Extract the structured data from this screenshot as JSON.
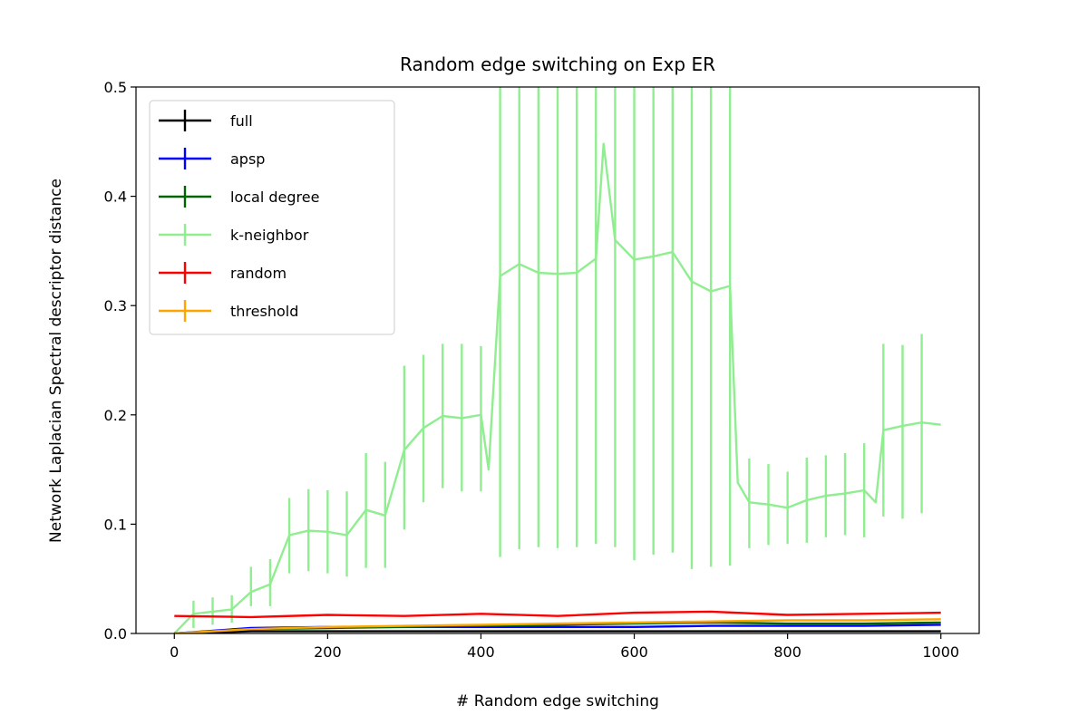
{
  "chart_data": {
    "type": "line",
    "title": "Random edge switching on Exp ER",
    "xlabel": "# Random edge switching",
    "ylabel": "Network Laplacian Spectral descriptor distance",
    "xlim": [
      -50,
      1050
    ],
    "ylim": [
      0,
      0.5
    ],
    "x_ticks": [
      0,
      200,
      400,
      600,
      800,
      1000
    ],
    "y_ticks": [
      0.0,
      0.1,
      0.2,
      0.3,
      0.4,
      0.5
    ],
    "x_tick_labels": [
      "0",
      "200",
      "400",
      "600",
      "800",
      "1000"
    ],
    "y_tick_labels": [
      "0.0",
      "0.1",
      "0.2",
      "0.3",
      "0.4",
      "0.5"
    ],
    "grid": false,
    "legend_position": "top-left",
    "series": [
      {
        "name": "full",
        "color": "#000000",
        "x": [
          0,
          100,
          200,
          300,
          400,
          500,
          600,
          700,
          800,
          900,
          1000
        ],
        "y": [
          0.0,
          0.002,
          0.002,
          0.002,
          0.002,
          0.002,
          0.002,
          0.002,
          0.002,
          0.002,
          0.002
        ]
      },
      {
        "name": "apsp",
        "color": "#0000ff",
        "x": [
          0,
          100,
          200,
          300,
          400,
          500,
          600,
          700,
          800,
          900,
          1000
        ],
        "y": [
          0.0,
          0.005,
          0.006,
          0.006,
          0.006,
          0.006,
          0.006,
          0.007,
          0.007,
          0.007,
          0.008
        ]
      },
      {
        "name": "local degree",
        "color": "#006400",
        "x": [
          0,
          100,
          200,
          300,
          400,
          500,
          600,
          700,
          800,
          900,
          1000
        ],
        "y": [
          0.0,
          0.004,
          0.005,
          0.006,
          0.007,
          0.008,
          0.009,
          0.01,
          0.009,
          0.009,
          0.01
        ]
      },
      {
        "name": "k-neighbor",
        "color": "#90ee90",
        "x": [
          0,
          25,
          50,
          75,
          100,
          125,
          150,
          175,
          200,
          225,
          250,
          275,
          300,
          325,
          350,
          375,
          400,
          410,
          425,
          450,
          475,
          500,
          525,
          550,
          560,
          575,
          600,
          625,
          650,
          675,
          700,
          725,
          735,
          750,
          775,
          800,
          825,
          850,
          875,
          900,
          915,
          925,
          950,
          975,
          1000
        ],
        "y": [
          0.0,
          0.018,
          0.02,
          0.022,
          0.038,
          0.045,
          0.09,
          0.094,
          0.093,
          0.09,
          0.113,
          0.108,
          0.168,
          0.188,
          0.199,
          0.197,
          0.2,
          0.15,
          0.327,
          0.338,
          0.33,
          0.329,
          0.33,
          0.343,
          0.448,
          0.36,
          0.342,
          0.345,
          0.349,
          0.322,
          0.313,
          0.318,
          0.138,
          0.12,
          0.118,
          0.115,
          0.122,
          0.126,
          0.128,
          0.131,
          0.12,
          0.186,
          0.19,
          0.193,
          0.191
        ],
        "err_x": [
          25,
          50,
          75,
          100,
          125,
          150,
          175,
          200,
          225,
          250,
          275,
          300,
          325,
          350,
          375,
          400,
          425,
          450,
          475,
          500,
          525,
          550,
          575,
          600,
          625,
          650,
          675,
          700,
          725,
          750,
          775,
          800,
          825,
          850,
          875,
          900,
          925,
          950,
          975
        ],
        "err_y": [
          0.018,
          0.02,
          0.022,
          0.038,
          0.045,
          0.09,
          0.094,
          0.093,
          0.09,
          0.113,
          0.108,
          0.168,
          0.188,
          0.199,
          0.197,
          0.2,
          0.327,
          0.338,
          0.33,
          0.329,
          0.33,
          0.343,
          0.36,
          0.342,
          0.345,
          0.349,
          0.322,
          0.313,
          0.318,
          0.12,
          0.118,
          0.115,
          0.122,
          0.126,
          0.128,
          0.131,
          0.186,
          0.19,
          0.193
        ],
        "err_low": [
          0.005,
          0.008,
          0.01,
          0.025,
          0.025,
          0.055,
          0.057,
          0.055,
          0.052,
          0.06,
          0.06,
          0.095,
          0.12,
          0.133,
          0.13,
          0.13,
          0.07,
          0.077,
          0.079,
          0.078,
          0.079,
          0.082,
          0.079,
          0.067,
          0.072,
          0.074,
          0.059,
          0.061,
          0.062,
          0.078,
          0.081,
          0.082,
          0.083,
          0.088,
          0.09,
          0.088,
          0.107,
          0.105,
          0.11
        ],
        "err_high": [
          0.03,
          0.033,
          0.035,
          0.061,
          0.068,
          0.124,
          0.132,
          0.131,
          0.13,
          0.165,
          0.157,
          0.245,
          0.255,
          0.265,
          0.265,
          0.263,
          0.5,
          0.5,
          0.5,
          0.5,
          0.5,
          0.5,
          0.5,
          0.5,
          0.5,
          0.5,
          0.5,
          0.5,
          0.5,
          0.16,
          0.155,
          0.148,
          0.161,
          0.163,
          0.165,
          0.174,
          0.265,
          0.264,
          0.274
        ]
      },
      {
        "name": "random",
        "color": "#ff0000",
        "x": [
          0,
          100,
          200,
          300,
          400,
          500,
          600,
          700,
          800,
          900,
          1000
        ],
        "y": [
          0.016,
          0.015,
          0.017,
          0.016,
          0.018,
          0.016,
          0.019,
          0.02,
          0.017,
          0.018,
          0.019
        ]
      },
      {
        "name": "threshold",
        "color": "#ffa500",
        "x": [
          0,
          100,
          200,
          300,
          400,
          500,
          600,
          700,
          800,
          900,
          1000
        ],
        "y": [
          0.0,
          0.004,
          0.006,
          0.007,
          0.008,
          0.009,
          0.01,
          0.011,
          0.012,
          0.012,
          0.013
        ]
      }
    ]
  }
}
